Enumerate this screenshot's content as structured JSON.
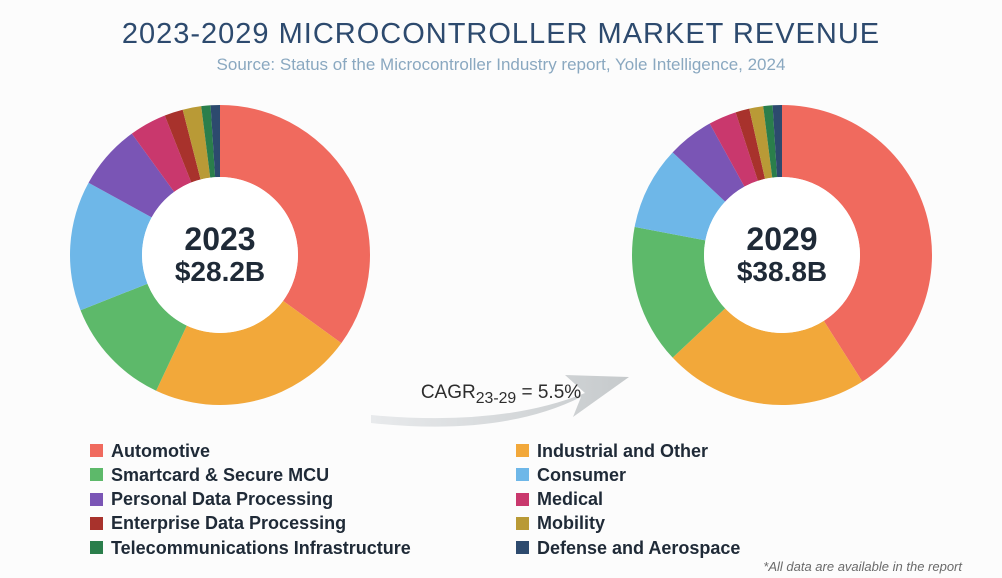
{
  "title": "2023-2029 MICROCONTROLLER MARKET REVENUE",
  "subtitle": "Source: Status of the Microcontroller Industry report, Yole Intelligence, 2024",
  "cagr_label": "CAGR",
  "cagr_sub": "23-29",
  "cagr_value": "= 5.5%",
  "footnote": "*All data are available in the report",
  "colors": {
    "title": "#2d4a6e",
    "subtitle": "#8aa8c0",
    "text": "#1f2a37",
    "background": "#fcfcfc",
    "donut_hole": "#ffffff",
    "arrow": "#d0d4d6"
  },
  "segments": [
    {
      "key": "automotive",
      "label": "Automotive",
      "color": "#f06a5e"
    },
    {
      "key": "industrial",
      "label": "Industrial and Other",
      "color": "#f2a83a"
    },
    {
      "key": "smartcard",
      "label": "Smartcard & Secure MCU",
      "color": "#5db96a"
    },
    {
      "key": "consumer",
      "label": "Consumer",
      "color": "#6eb7e8"
    },
    {
      "key": "personal",
      "label": "Personal Data Processing",
      "color": "#7a55b5"
    },
    {
      "key": "medical",
      "label": "Medical",
      "color": "#c9386d"
    },
    {
      "key": "enterprise",
      "label": "Enterprise Data Processing",
      "color": "#a8322c"
    },
    {
      "key": "mobility",
      "label": "Mobility",
      "color": "#b99a36"
    },
    {
      "key": "telecom",
      "label": "Telecommunications Infrastructure",
      "color": "#2a7e4b"
    },
    {
      "key": "defense",
      "label": "Defense and Aerospace",
      "color": "#2d4a6e"
    }
  ],
  "charts": [
    {
      "id": "left",
      "year": "2023",
      "value": "$28.2B",
      "slices_pct": {
        "automotive": 35,
        "industrial": 22,
        "smartcard": 12,
        "consumer": 14,
        "personal": 7,
        "medical": 4,
        "enterprise": 2,
        "mobility": 2,
        "telecom": 1,
        "defense": 1
      }
    },
    {
      "id": "right",
      "year": "2029",
      "value": "$38.8B",
      "slices_pct": {
        "automotive": 41,
        "industrial": 22,
        "smartcard": 15,
        "consumer": 9,
        "personal": 5,
        "medical": 3,
        "enterprise": 1.5,
        "mobility": 1.5,
        "telecom": 1,
        "defense": 1
      }
    }
  ],
  "donut": {
    "outer_radius": 150,
    "inner_radius": 78,
    "start_angle_deg": -90
  },
  "legend_columns": [
    [
      "automotive",
      "smartcard",
      "personal",
      "enterprise",
      "telecom"
    ],
    [
      "industrial",
      "consumer",
      "medical",
      "mobility",
      "defense"
    ]
  ]
}
